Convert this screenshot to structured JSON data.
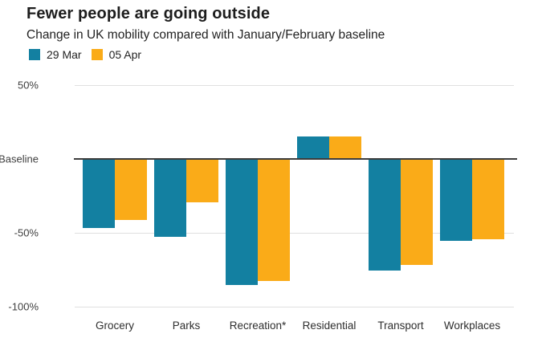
{
  "title": "Fewer people are going outside",
  "subtitle": "Change in UK mobility compared with January/February baseline",
  "legend": {
    "items": [
      {
        "label": "29 Mar",
        "color": "#1380A1"
      },
      {
        "label": "05 Apr",
        "color": "#FAAB18"
      }
    ]
  },
  "chart_data": {
    "type": "bar",
    "title": "Fewer people are going outside",
    "subtitle": "Change in UK mobility compared with January/February baseline",
    "categories": [
      "Grocery",
      "Parks",
      "Recreation*",
      "Residential",
      "Transport",
      "Workplaces"
    ],
    "series": [
      {
        "name": "29 Mar",
        "color": "#1380A1",
        "values": [
          -46,
          -52,
          -85,
          15,
          -75,
          -55
        ]
      },
      {
        "name": "05 Apr",
        "color": "#FAAB18",
        "values": [
          -41,
          -29,
          -82,
          15,
          -71,
          -54
        ]
      }
    ],
    "xlabel": "",
    "ylabel": "",
    "ylim": [
      -100,
      50
    ],
    "yticks": [
      {
        "value": 50,
        "label": "50%"
      },
      {
        "value": 0,
        "label": "Baseline"
      },
      {
        "value": -50,
        "label": "-50%"
      },
      {
        "value": -100,
        "label": "-100%"
      }
    ],
    "baseline_value": 0,
    "grid": true,
    "legend_position": "top-left"
  },
  "colors": {
    "series_1": "#1380A1",
    "series_2": "#FAAB18",
    "gridline": "#e0e0e0",
    "baseline": "#3c3c3c",
    "title_text": "#1d1d1d",
    "body_text": "#222222"
  }
}
